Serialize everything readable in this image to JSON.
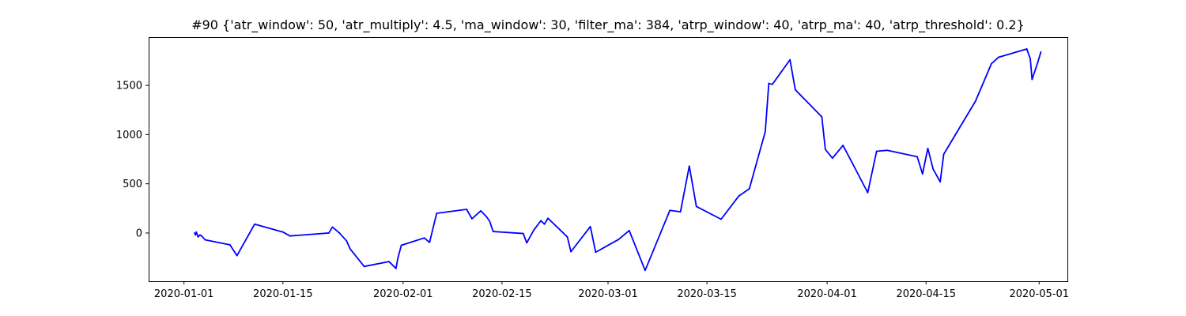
{
  "chart_data": {
    "type": "line",
    "title": "#90 {'atr_window': 50, 'atr_multiply': 4.5, 'ma_window': 30, 'filter_ma': 384, 'atrp_window': 40, 'atrp_ma': 40, 'atrp_threshold': 0.2}",
    "xlabel": "",
    "ylabel": "",
    "x_type": "date",
    "xlim": [
      "2019-12-27",
      "2020-05-05"
    ],
    "ylim": [
      -490,
      1990
    ],
    "grid": false,
    "line_color": "#0000ff",
    "x_ticks": [
      "2020-01-01",
      "2020-01-15",
      "2020-02-01",
      "2020-02-15",
      "2020-03-01",
      "2020-03-15",
      "2020-04-01",
      "2020-04-15",
      "2020-05-01"
    ],
    "y_ticks": [
      0,
      500,
      1000,
      1500
    ],
    "series": [
      {
        "name": "",
        "points": [
          [
            "2020-01-02 12:00",
            0
          ],
          [
            "2020-01-02 15:00",
            -20
          ],
          [
            "2020-01-02 18:00",
            10
          ],
          [
            "2020-01-03 00:00",
            -40
          ],
          [
            "2020-01-03 06:00",
            -20
          ],
          [
            "2020-01-03 12:00",
            -30
          ],
          [
            "2020-01-04 00:00",
            -70
          ],
          [
            "2020-01-07 12:00",
            -120
          ],
          [
            "2020-01-08 12:00",
            -230
          ],
          [
            "2020-01-11 00:00",
            90
          ],
          [
            "2020-01-15 00:00",
            10
          ],
          [
            "2020-01-16 00:00",
            -30
          ],
          [
            "2020-01-21 12:00",
            0
          ],
          [
            "2020-01-22 00:00",
            60
          ],
          [
            "2020-01-23 00:00",
            0
          ],
          [
            "2020-01-24 00:00",
            -80
          ],
          [
            "2020-01-24 12:00",
            -160
          ],
          [
            "2020-01-26 12:00",
            -340
          ],
          [
            "2020-01-30 00:00",
            -290
          ],
          [
            "2020-01-31 00:00",
            -360
          ],
          [
            "2020-01-31 06:00",
            -260
          ],
          [
            "2020-01-31 18:00",
            -125
          ],
          [
            "2020-02-04 00:00",
            -50
          ],
          [
            "2020-02-04 18:00",
            -95
          ],
          [
            "2020-02-05 18:00",
            200
          ],
          [
            "2020-02-10 00:00",
            240
          ],
          [
            "2020-02-10 18:00",
            145
          ],
          [
            "2020-02-12 00:00",
            225
          ],
          [
            "2020-02-12 18:00",
            170
          ],
          [
            "2020-02-13 06:00",
            120
          ],
          [
            "2020-02-13 18:00",
            15
          ],
          [
            "2020-02-18 00:00",
            -5
          ],
          [
            "2020-02-18 12:00",
            -100
          ],
          [
            "2020-02-19 12:00",
            30
          ],
          [
            "2020-02-20 12:00",
            125
          ],
          [
            "2020-02-21 00:00",
            90
          ],
          [
            "2020-02-21 12:00",
            150
          ],
          [
            "2020-02-24 06:00",
            -40
          ],
          [
            "2020-02-24 18:00",
            -190
          ],
          [
            "2020-02-27 12:00",
            65
          ],
          [
            "2020-02-28 06:00",
            -195
          ],
          [
            "2020-03-02 12:00",
            -65
          ],
          [
            "2020-03-04 00:00",
            25
          ],
          [
            "2020-03-06 06:00",
            -380
          ],
          [
            "2020-03-09 18:00",
            230
          ],
          [
            "2020-03-11 06:00",
            215
          ],
          [
            "2020-03-12 12:00",
            680
          ],
          [
            "2020-03-13 12:00",
            270
          ],
          [
            "2020-03-17 00:00",
            140
          ],
          [
            "2020-03-19 12:00",
            375
          ],
          [
            "2020-03-21 00:00",
            450
          ],
          [
            "2020-03-23 06:00",
            1030
          ],
          [
            "2020-03-23 18:00",
            1520
          ],
          [
            "2020-03-24 06:00",
            1510
          ],
          [
            "2020-03-26 18:00",
            1760
          ],
          [
            "2020-03-27 12:00",
            1455
          ],
          [
            "2020-03-31 06:00",
            1180
          ],
          [
            "2020-03-31 18:00",
            850
          ],
          [
            "2020-04-01 18:00",
            760
          ],
          [
            "2020-04-03 06:00",
            890
          ],
          [
            "2020-04-04 12:00",
            720
          ],
          [
            "2020-04-06 18:00",
            410
          ],
          [
            "2020-04-08 00:00",
            830
          ],
          [
            "2020-04-09 12:00",
            840
          ],
          [
            "2020-04-13 18:00",
            775
          ],
          [
            "2020-04-14 12:00",
            600
          ],
          [
            "2020-04-15 06:00",
            860
          ],
          [
            "2020-04-16 00:00",
            650
          ],
          [
            "2020-04-17 00:00",
            520
          ],
          [
            "2020-04-17 12:00",
            800
          ],
          [
            "2020-04-22 00:00",
            1340
          ],
          [
            "2020-04-24 06:00",
            1720
          ],
          [
            "2020-04-25 06:00",
            1785
          ],
          [
            "2020-04-29 06:00",
            1870
          ],
          [
            "2020-04-29 18:00",
            1770
          ],
          [
            "2020-04-30 00:00",
            1560
          ],
          [
            "2020-04-30 18:00",
            1720
          ],
          [
            "2020-05-01 06:00",
            1840
          ]
        ]
      }
    ]
  }
}
